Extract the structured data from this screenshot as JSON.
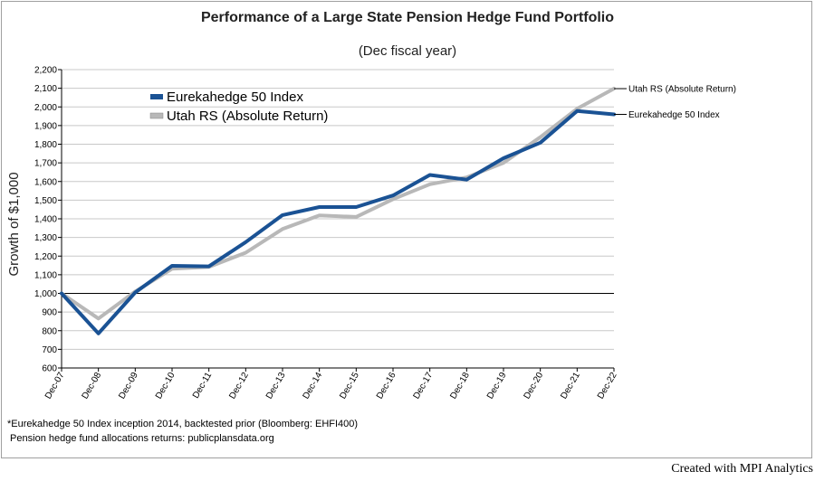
{
  "chart_data": {
    "type": "line",
    "title": "Performance of a Large State Pension Hedge Fund Portfolio",
    "subtitle": "(Dec fiscal year)",
    "xlabel": "",
    "ylabel": "Growth of $1,000",
    "categories": [
      "Dec-07",
      "Dec-08",
      "Dec-09",
      "Dec-10",
      "Dec-11",
      "Dec-12",
      "Dec-13",
      "Dec-14",
      "Dec-15",
      "Dec-16",
      "Dec-17",
      "Dec-18",
      "Dec-19",
      "Dec-20",
      "Dec-21",
      "Dec-22"
    ],
    "ylim": [
      600,
      2200
    ],
    "yticks": [
      600,
      700,
      800,
      900,
      1000,
      1100,
      1200,
      1300,
      1400,
      1500,
      1600,
      1700,
      1800,
      1900,
      2000,
      2100,
      2200
    ],
    "ytick_labels": [
      "600",
      "700",
      "800",
      "900",
      "1,000",
      "1,100",
      "1,200",
      "1,300",
      "1,400",
      "1,500",
      "1,600",
      "1,700",
      "1,800",
      "1,900",
      "2,000",
      "2,100",
      "2,200"
    ],
    "reference_line": 1000,
    "grid": true,
    "legend_position": "top-left",
    "series": [
      {
        "name": "Eurekahedge 50 Index",
        "color": "#1a5294",
        "values": [
          1000,
          785,
          1005,
          1148,
          1145,
          1275,
          1420,
          1463,
          1463,
          1525,
          1635,
          1610,
          1725,
          1808,
          1978,
          1960
        ]
      },
      {
        "name": "Utah RS (Absolute Return)",
        "color": "#b8b8b8",
        "values": [
          1000,
          865,
          1010,
          1132,
          1142,
          1218,
          1345,
          1418,
          1410,
          1505,
          1585,
          1622,
          1700,
          1838,
          1990,
          2098
        ]
      }
    ],
    "end_labels": [
      "Utah RS (Absolute Return)",
      "Eurekahedge 50 Index"
    ]
  },
  "footnotes": {
    "line1": "*Eurekahedge 50 Index inception 2014, backtested prior (Bloomberg: EHFI400)",
    "line2": " Pension hedge fund allocations returns: publicplansdata.org"
  },
  "credit": "Created with MPI Analytics"
}
